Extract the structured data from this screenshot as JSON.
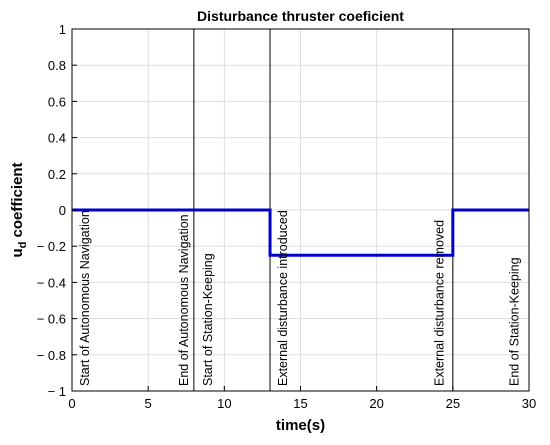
{
  "chart_data": {
    "type": "line",
    "title": "Disturbance thruster coeficient",
    "xlabel": "time(s)",
    "ylabel": "u",
    "ylabel_subscript": "d",
    "ylabel_suffix": " coefficient",
    "xlim": [
      0,
      30
    ],
    "ylim": [
      -1,
      1
    ],
    "xticks": [
      0,
      5,
      10,
      15,
      20,
      25,
      30
    ],
    "yticks": [
      1,
      0.8,
      0.6,
      0.4,
      0.2,
      0,
      -0.2,
      -0.4,
      -0.6,
      -0.8,
      -1
    ],
    "xtick_labels": [
      "0",
      "5",
      "10",
      "15",
      "20",
      "25",
      "30"
    ],
    "ytick_labels": [
      "1",
      "0.8",
      "0.6",
      "0.4",
      "0.2",
      "0",
      "− 0.2",
      "− 0.4",
      "− 0.6",
      "− 0.8",
      "− 1"
    ],
    "grid": true,
    "series": [
      {
        "color": "#0000cc",
        "x": [
          0,
          13,
          13,
          25,
          25,
          30
        ],
        "y": [
          0,
          0,
          -0.25,
          -0.25,
          0,
          0
        ]
      }
    ],
    "vlines": [
      8,
      13,
      25
    ],
    "annotations": [
      {
        "x": 1.1,
        "text": "Start of Autonomous Navigation"
      },
      {
        "x": 7.6,
        "text": "End of Autonomous Navigation"
      },
      {
        "x": 9.2,
        "text": "Start of Station-Keeping"
      },
      {
        "x": 14.1,
        "text": "External disturbance introduced"
      },
      {
        "x": 24.4,
        "text": "External disturbance removed"
      },
      {
        "x": 29.3,
        "text": "End of Station-Keeping"
      }
    ]
  }
}
